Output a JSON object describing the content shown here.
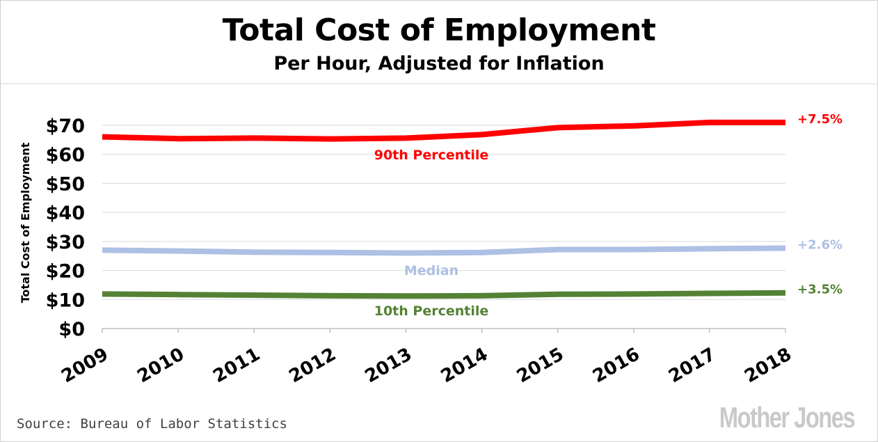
{
  "chart_data": {
    "type": "line",
    "title": "Total Cost of Employment",
    "subtitle": "Per Hour, Adjusted for Inflation",
    "ylabel": "Total Cost of Employment",
    "xlabel": "",
    "x": [
      "2009",
      "2010",
      "2011",
      "2012",
      "2013",
      "2014",
      "2015",
      "2016",
      "2017",
      "2018"
    ],
    "ylim": [
      0,
      70
    ],
    "yticks": [
      "$0",
      "$10",
      "$20",
      "$30",
      "$40",
      "$50",
      "$60",
      "$70"
    ],
    "grid": true,
    "series": [
      {
        "name": "90th Percentile",
        "color": "#ff0000",
        "values": [
          66.0,
          65.4,
          65.6,
          65.3,
          65.6,
          66.8,
          69.2,
          69.8,
          71.0,
          71.0
        ],
        "end_label": "+7.5%"
      },
      {
        "name": "Median",
        "color": "#aec0e4",
        "values": [
          27.0,
          26.7,
          26.3,
          26.2,
          26.0,
          26.2,
          27.2,
          27.2,
          27.5,
          27.7
        ],
        "end_label": "+2.6%"
      },
      {
        "name": "10th Percentile",
        "color": "#548235",
        "values": [
          11.9,
          11.7,
          11.5,
          11.3,
          11.2,
          11.3,
          11.8,
          11.9,
          12.1,
          12.3
        ],
        "end_label": "+3.5%"
      }
    ]
  },
  "footer": {
    "source": "Source: Bureau of Labor Statistics",
    "logo_text": "Mother Jones"
  }
}
